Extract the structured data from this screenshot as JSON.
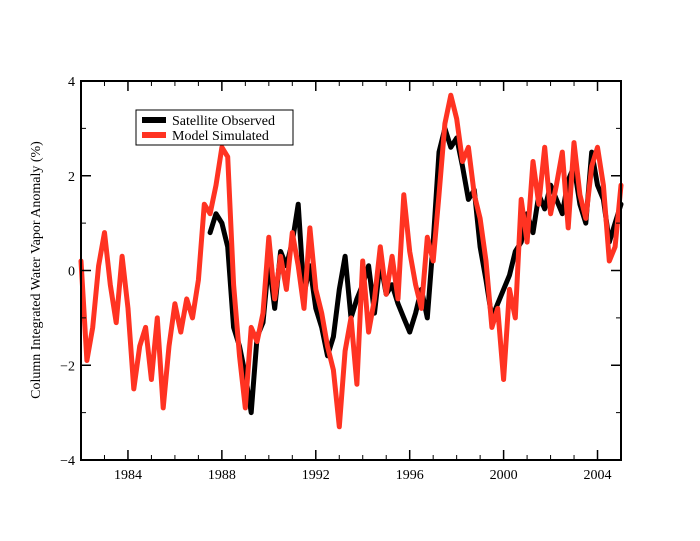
{
  "chart_data": {
    "type": "line",
    "title": "",
    "xlabel": "",
    "ylabel": "Column Integrated Water Vapor Anomaly  (%)",
    "xlim": [
      1982,
      2005
    ],
    "ylim": [
      -4,
      4
    ],
    "x_ticks": [
      1984,
      1988,
      1992,
      1996,
      2000,
      2004
    ],
    "y_ticks": [
      -4,
      -2,
      0,
      2,
      4
    ],
    "x_tick_labels": [
      "1984",
      "1988",
      "1992",
      "1996",
      "2000",
      "2004"
    ],
    "y_tick_labels": [
      "−4",
      "−2",
      "0",
      "2",
      "4"
    ],
    "grid": false,
    "legend_position": "top-left",
    "series": [
      {
        "name": "Satellite Observed",
        "color": "#000000",
        "x": [
          1987.5,
          1987.75,
          1988.0,
          1988.25,
          1988.5,
          1988.75,
          1989.0,
          1989.25,
          1989.5,
          1989.75,
          1990.0,
          1990.25,
          1990.5,
          1990.75,
          1991.0,
          1991.25,
          1991.5,
          1991.75,
          1992.0,
          1992.25,
          1992.5,
          1992.75,
          1993.0,
          1993.25,
          1993.5,
          1993.75,
          1994.0,
          1994.25,
          1994.5,
          1994.75,
          1995.0,
          1995.25,
          1995.5,
          1995.75,
          1996.0,
          1996.25,
          1996.5,
          1996.75,
          1997.0,
          1997.25,
          1997.5,
          1997.75,
          1998.0,
          1998.25,
          1998.5,
          1998.75,
          1999.0,
          1999.25,
          1999.5,
          1999.75,
          2000.0,
          2000.25,
          2000.5,
          2000.75,
          2001.0,
          2001.25,
          2001.5,
          2001.75,
          2002.0,
          2002.25,
          2002.5,
          2002.75,
          2003.0,
          2003.25,
          2003.5,
          2003.75,
          2004.0,
          2004.25,
          2004.5,
          2004.75,
          2005.0
        ],
        "y": [
          0.8,
          1.2,
          1.0,
          0.5,
          -1.2,
          -1.6,
          -2.2,
          -3.0,
          -1.4,
          -1.1,
          0.2,
          -0.8,
          0.4,
          0.1,
          0.6,
          1.4,
          -0.5,
          0.1,
          -0.8,
          -1.2,
          -1.8,
          -1.4,
          -0.4,
          0.3,
          -1.0,
          -0.6,
          -0.3,
          0.1,
          -0.9,
          0.2,
          -0.5,
          -0.3,
          -0.7,
          -1.0,
          -1.3,
          -0.9,
          -0.4,
          -1.0,
          0.6,
          2.5,
          3.0,
          2.6,
          2.8,
          2.2,
          1.5,
          1.7,
          0.5,
          -0.2,
          -1.0,
          -0.7,
          -0.4,
          -0.1,
          0.4,
          0.6,
          1.2,
          0.8,
          1.6,
          1.3,
          1.8,
          1.5,
          1.2,
          1.9,
          2.2,
          1.4,
          1.0,
          2.5,
          1.8,
          1.5,
          0.6,
          1.0,
          1.4
        ]
      },
      {
        "name": "Model Simulated",
        "color": "#ff3322",
        "x": [
          1982.0,
          1982.25,
          1982.5,
          1982.75,
          1983.0,
          1983.25,
          1983.5,
          1983.75,
          1984.0,
          1984.25,
          1984.5,
          1984.75,
          1985.0,
          1985.25,
          1985.5,
          1985.75,
          1986.0,
          1986.25,
          1986.5,
          1986.75,
          1987.0,
          1987.25,
          1987.5,
          1987.75,
          1988.0,
          1988.25,
          1988.5,
          1988.75,
          1989.0,
          1989.25,
          1989.5,
          1989.75,
          1990.0,
          1990.25,
          1990.5,
          1990.75,
          1991.0,
          1991.25,
          1991.5,
          1991.75,
          1992.0,
          1992.25,
          1992.5,
          1992.75,
          1993.0,
          1993.25,
          1993.5,
          1993.75,
          1994.0,
          1994.25,
          1994.5,
          1994.75,
          1995.0,
          1995.25,
          1995.5,
          1995.75,
          1996.0,
          1996.25,
          1996.5,
          1996.75,
          1997.0,
          1997.25,
          1997.5,
          1997.75,
          1998.0,
          1998.25,
          1998.5,
          1998.75,
          1999.0,
          1999.25,
          1999.5,
          1999.75,
          2000.0,
          2000.25,
          2000.5,
          2000.75,
          2001.0,
          2001.25,
          2001.5,
          2001.75,
          2002.0,
          2002.25,
          2002.5,
          2002.75,
          2003.0,
          2003.25,
          2003.5,
          2003.75,
          2004.0,
          2004.25,
          2004.5,
          2004.75,
          2005.0
        ],
        "y": [
          0.2,
          -1.9,
          -1.2,
          0.1,
          0.8,
          -0.3,
          -1.1,
          0.3,
          -0.8,
          -2.5,
          -1.6,
          -1.2,
          -2.3,
          -1.0,
          -2.9,
          -1.6,
          -0.7,
          -1.3,
          -0.6,
          -1.0,
          -0.2,
          1.4,
          1.2,
          1.8,
          2.6,
          2.4,
          -0.3,
          -1.8,
          -2.9,
          -1.2,
          -1.5,
          -0.9,
          0.7,
          -0.6,
          0.3,
          -0.4,
          0.8,
          0.1,
          -0.8,
          0.9,
          -0.4,
          -0.9,
          -1.6,
          -2.1,
          -3.3,
          -1.7,
          -1.0,
          -2.4,
          0.2,
          -1.3,
          -0.6,
          0.5,
          -0.5,
          0.3,
          -0.6,
          1.6,
          0.4,
          -0.3,
          -0.8,
          0.7,
          0.2,
          1.6,
          3.1,
          3.7,
          3.2,
          2.3,
          2.6,
          1.6,
          1.1,
          0.2,
          -1.2,
          -0.8,
          -2.3,
          -0.4,
          -1.0,
          1.5,
          0.6,
          2.3,
          1.4,
          2.6,
          1.2,
          1.8,
          2.5,
          0.9,
          2.7,
          1.6,
          1.1,
          2.2,
          2.6,
          1.8,
          0.2,
          0.5,
          1.8
        ]
      }
    ]
  }
}
